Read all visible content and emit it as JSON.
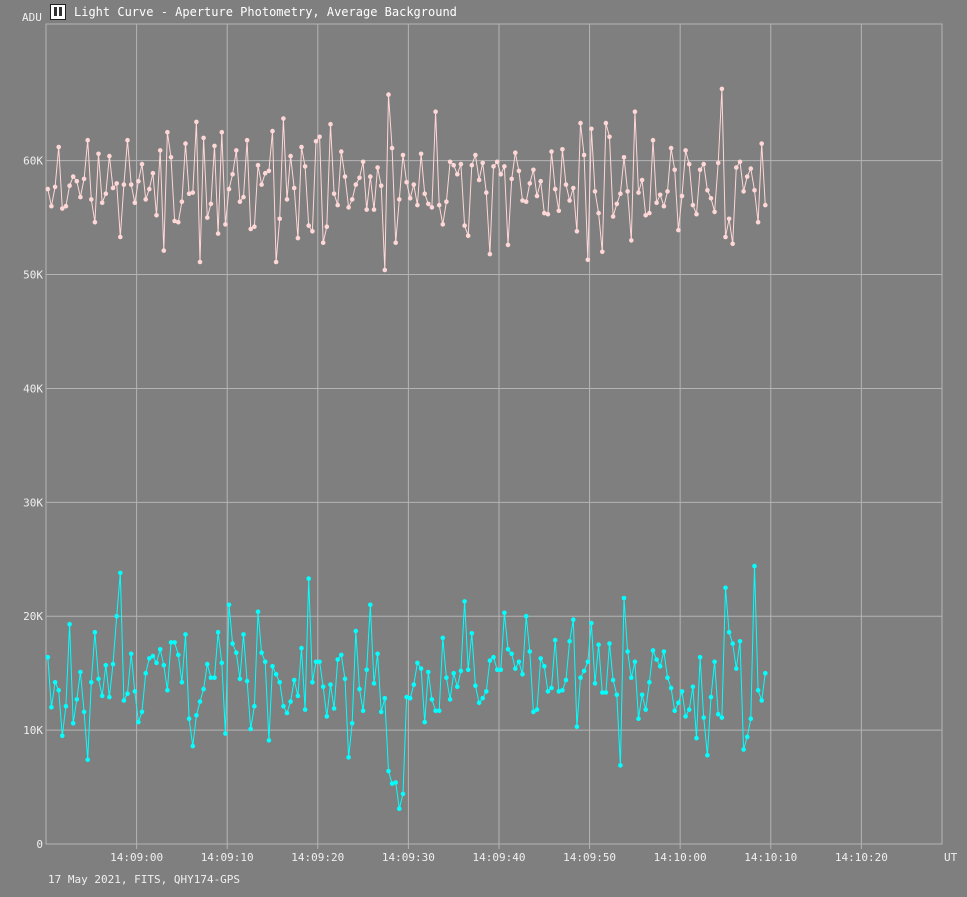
{
  "window": {
    "title": "Light Curve - Aperture Photometry, Average Background"
  },
  "footer": {
    "text": "17 May 2021, FITS, QHY174-GPS"
  },
  "colors": {
    "background": "#7f7f7f",
    "grid": "#b4b4b4",
    "target": "#ffd7d7",
    "comparison": "#00ffff"
  },
  "chart_data": {
    "type": "line",
    "title": "Light Curve - Aperture Photometry, Average Background",
    "ylabel": "ADU",
    "xlabel": "UT",
    "ylim": [
      0,
      72000
    ],
    "y_ticks": [
      0,
      10000,
      20000,
      30000,
      40000,
      50000,
      60000
    ],
    "y_tick_labels": [
      "0",
      "10K",
      "20K",
      "30K",
      "40K",
      "50K",
      "60K"
    ],
    "x_tick_labels": [
      "14:09:00",
      "14:09:10",
      "14:09:20",
      "14:09:30",
      "14:09:40",
      "14:09:50",
      "14:10:00",
      "14:10:10",
      "14:10:20"
    ],
    "x_tick_seconds": [
      0,
      10,
      20,
      30,
      40,
      50,
      60,
      70,
      80
    ],
    "xlim_seconds": [
      -10,
      88.9
    ],
    "x_start_seconds": -9.8,
    "x_step_seconds": 0.4,
    "grid": true,
    "series": [
      {
        "color": "#ffd7d7",
        "values": [
          57500,
          56000,
          57700,
          61200,
          55800,
          56000,
          57800,
          58600,
          58200,
          56800,
          58400,
          61800,
          56600,
          54600,
          60600,
          56300,
          57100,
          60400,
          57600,
          58000,
          53300,
          57900,
          61800,
          57900,
          56300,
          58200,
          59700,
          56600,
          57500,
          58900,
          55200,
          60900,
          52100,
          62500,
          60300,
          54700,
          54600,
          56400,
          61500,
          57100,
          57200,
          63400,
          51100,
          62000,
          55000,
          56200,
          61300,
          53600,
          62500,
          54400,
          57500,
          58800,
          60900,
          56400,
          56800,
          61800,
          54000,
          54200,
          59600,
          57900,
          58900,
          59100,
          62600,
          51100,
          54900,
          63700,
          56600,
          60400,
          57600,
          53200,
          61200,
          59500,
          54300,
          53800,
          61700,
          62100,
          52800,
          54200,
          63200,
          57100,
          56100,
          60800,
          58600,
          55900,
          56600,
          57900,
          58500,
          59900,
          55700,
          58600,
          55700,
          59400,
          57800,
          50400,
          65800,
          61100,
          52800,
          56600,
          60500,
          58100,
          56700,
          57900,
          56100,
          60600,
          57100,
          56200,
          55900,
          64300,
          56100,
          54400,
          56400,
          59900,
          59600,
          58800,
          59700,
          54300,
          53400,
          59600,
          60500,
          58300,
          59800,
          57200,
          51800,
          59500,
          59900,
          58800,
          59500,
          52600,
          58400,
          60700,
          59100,
          56500,
          56400,
          58000,
          59200,
          56900,
          58200,
          55400,
          55300,
          60800,
          57500,
          55600,
          61000,
          57900,
          56500,
          57600,
          53800,
          63300,
          60500,
          51300,
          62800,
          57300,
          55400,
          52000,
          63300,
          62100,
          55100,
          56200,
          57100,
          60300,
          57300,
          53000,
          64300,
          57200,
          58300,
          55200,
          55400,
          61800,
          56300,
          57000,
          56000,
          57300,
          61100,
          59200,
          53900,
          56900,
          60900,
          59700,
          56100,
          55300,
          59200,
          59700,
          57400,
          56700,
          55500,
          59800,
          66300,
          53300,
          54900,
          52700,
          59400,
          59900,
          57300,
          58600,
          59300,
          57400,
          54600,
          61500,
          56100
        ]
      },
      {
        "color": "#00ffff",
        "values": [
          16400,
          12000,
          14200,
          13500,
          9500,
          12100,
          19300,
          10600,
          12700,
          15100,
          11600,
          7400,
          14200,
          18600,
          14500,
          13000,
          15700,
          12900,
          15800,
          20000,
          23800,
          12600,
          13200,
          16700,
          13400,
          10700,
          11600,
          15000,
          16300,
          16500,
          15900,
          17100,
          15700,
          13500,
          17700,
          17700,
          16600,
          14200,
          18400,
          11000,
          8600,
          11300,
          12500,
          13600,
          15800,
          14600,
          14600,
          18600,
          15900,
          9700,
          21000,
          17600,
          16800,
          14500,
          18400,
          14300,
          10100,
          12100,
          20400,
          16800,
          16000,
          9100,
          15600,
          14900,
          14200,
          12100,
          11500,
          12500,
          14400,
          13000,
          17200,
          11800,
          23300,
          14200,
          16000,
          16000,
          13800,
          11200,
          14000,
          11900,
          16200,
          16600,
          14500,
          7600,
          10600,
          18700,
          13600,
          11700,
          15300,
          21000,
          14100,
          16700,
          11600,
          12800,
          6400,
          5300,
          5400,
          3100,
          4400,
          12900,
          12800,
          14000,
          15900,
          15400,
          10700,
          15100,
          12700,
          11700,
          11700,
          18100,
          14600,
          12700,
          15000,
          13800,
          15200,
          21300,
          15300,
          18500,
          13900,
          12400,
          12800,
          13400,
          16100,
          16400,
          15300,
          15300,
          20300,
          17100,
          16700,
          15400,
          16000,
          14900,
          20000,
          16900,
          11600,
          11800,
          16300,
          15600,
          13400,
          13700,
          17900,
          13400,
          13500,
          14400,
          17800,
          19700,
          10300,
          14600,
          15200,
          16000,
          19400,
          14100,
          17500,
          13300,
          13300,
          17600,
          14400,
          13100,
          6900,
          21600,
          16900,
          14600,
          16000,
          11000,
          13100,
          11800,
          14200,
          17000,
          16200,
          15600,
          16900,
          14600,
          13700,
          11700,
          12400,
          13400,
          11200,
          11800,
          13800,
          9300,
          16400,
          11100,
          7800,
          12900,
          16000,
          11400,
          11100,
          22500,
          18600,
          17600,
          15400,
          17800,
          8300,
          9400,
          11000,
          24400,
          13500,
          12600,
          15000
        ]
      }
    ]
  }
}
